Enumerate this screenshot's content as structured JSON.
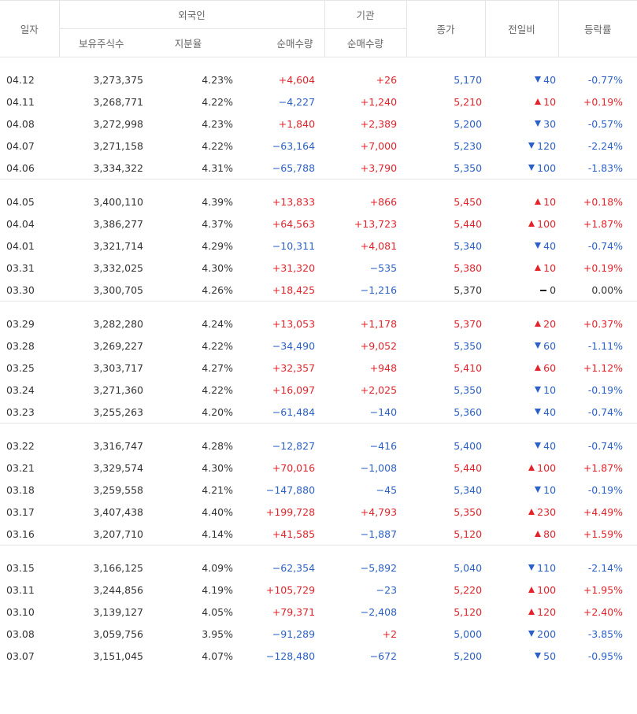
{
  "headers": {
    "date": "일자",
    "foreign_group": "외국인",
    "institution_group": "기관",
    "holdings": "보유주식수",
    "ratio": "지분율",
    "foreign_net": "순매수량",
    "inst_net": "순매수량",
    "close": "종가",
    "change": "전일비",
    "rate": "등락률"
  },
  "colors": {
    "up": "#e4222a",
    "down": "#2b60c9",
    "flat": "#333333"
  },
  "groups": [
    [
      {
        "date": "04.12",
        "holdings": "3,273,375",
        "ratio": "4.23%",
        "fnet": "+4,604",
        "inet": "+26",
        "close": "5,170",
        "dir": "dn",
        "chg": "40",
        "rate": "-0.77%"
      },
      {
        "date": "04.11",
        "holdings": "3,268,771",
        "ratio": "4.22%",
        "fnet": "−4,227",
        "inet": "+1,240",
        "close": "5,210",
        "dir": "up",
        "chg": "10",
        "rate": "+0.19%"
      },
      {
        "date": "04.08",
        "holdings": "3,272,998",
        "ratio": "4.23%",
        "fnet": "+1,840",
        "inet": "+2,389",
        "close": "5,200",
        "dir": "dn",
        "chg": "30",
        "rate": "-0.57%"
      },
      {
        "date": "04.07",
        "holdings": "3,271,158",
        "ratio": "4.22%",
        "fnet": "−63,164",
        "inet": "+7,000",
        "close": "5,230",
        "dir": "dn",
        "chg": "120",
        "rate": "-2.24%"
      },
      {
        "date": "04.06",
        "holdings": "3,334,322",
        "ratio": "4.31%",
        "fnet": "−65,788",
        "inet": "+3,790",
        "close": "5,350",
        "dir": "dn",
        "chg": "100",
        "rate": "-1.83%"
      }
    ],
    [
      {
        "date": "04.05",
        "holdings": "3,400,110",
        "ratio": "4.39%",
        "fnet": "+13,833",
        "inet": "+866",
        "close": "5,450",
        "dir": "up",
        "chg": "10",
        "rate": "+0.18%"
      },
      {
        "date": "04.04",
        "holdings": "3,386,277",
        "ratio": "4.37%",
        "fnet": "+64,563",
        "inet": "+13,723",
        "close": "5,440",
        "dir": "up",
        "chg": "100",
        "rate": "+1.87%"
      },
      {
        "date": "04.01",
        "holdings": "3,321,714",
        "ratio": "4.29%",
        "fnet": "−10,311",
        "inet": "+4,081",
        "close": "5,340",
        "dir": "dn",
        "chg": "40",
        "rate": "-0.74%"
      },
      {
        "date": "03.31",
        "holdings": "3,332,025",
        "ratio": "4.30%",
        "fnet": "+31,320",
        "inet": "−535",
        "close": "5,380",
        "dir": "up",
        "chg": "10",
        "rate": "+0.19%"
      },
      {
        "date": "03.30",
        "holdings": "3,300,705",
        "ratio": "4.26%",
        "fnet": "+18,425",
        "inet": "−1,216",
        "close": "5,370",
        "dir": "flat",
        "chg": "0",
        "rate": "0.00%"
      }
    ],
    [
      {
        "date": "03.29",
        "holdings": "3,282,280",
        "ratio": "4.24%",
        "fnet": "+13,053",
        "inet": "+1,178",
        "close": "5,370",
        "dir": "up",
        "chg": "20",
        "rate": "+0.37%"
      },
      {
        "date": "03.28",
        "holdings": "3,269,227",
        "ratio": "4.22%",
        "fnet": "−34,490",
        "inet": "+9,052",
        "close": "5,350",
        "dir": "dn",
        "chg": "60",
        "rate": "-1.11%"
      },
      {
        "date": "03.25",
        "holdings": "3,303,717",
        "ratio": "4.27%",
        "fnet": "+32,357",
        "inet": "+948",
        "close": "5,410",
        "dir": "up",
        "chg": "60",
        "rate": "+1.12%"
      },
      {
        "date": "03.24",
        "holdings": "3,271,360",
        "ratio": "4.22%",
        "fnet": "+16,097",
        "inet": "+2,025",
        "close": "5,350",
        "dir": "dn",
        "chg": "10",
        "rate": "-0.19%"
      },
      {
        "date": "03.23",
        "holdings": "3,255,263",
        "ratio": "4.20%",
        "fnet": "−61,484",
        "inet": "−140",
        "close": "5,360",
        "dir": "dn",
        "chg": "40",
        "rate": "-0.74%"
      }
    ],
    [
      {
        "date": "03.22",
        "holdings": "3,316,747",
        "ratio": "4.28%",
        "fnet": "−12,827",
        "inet": "−416",
        "close": "5,400",
        "dir": "dn",
        "chg": "40",
        "rate": "-0.74%"
      },
      {
        "date": "03.21",
        "holdings": "3,329,574",
        "ratio": "4.30%",
        "fnet": "+70,016",
        "inet": "−1,008",
        "close": "5,440",
        "dir": "up",
        "chg": "100",
        "rate": "+1.87%"
      },
      {
        "date": "03.18",
        "holdings": "3,259,558",
        "ratio": "4.21%",
        "fnet": "−147,880",
        "inet": "−45",
        "close": "5,340",
        "dir": "dn",
        "chg": "10",
        "rate": "-0.19%"
      },
      {
        "date": "03.17",
        "holdings": "3,407,438",
        "ratio": "4.40%",
        "fnet": "+199,728",
        "inet": "+4,793",
        "close": "5,350",
        "dir": "up",
        "chg": "230",
        "rate": "+4.49%"
      },
      {
        "date": "03.16",
        "holdings": "3,207,710",
        "ratio": "4.14%",
        "fnet": "+41,585",
        "inet": "−1,887",
        "close": "5,120",
        "dir": "up",
        "chg": "80",
        "rate": "+1.59%"
      }
    ],
    [
      {
        "date": "03.15",
        "holdings": "3,166,125",
        "ratio": "4.09%",
        "fnet": "−62,354",
        "inet": "−5,892",
        "close": "5,040",
        "dir": "dn",
        "chg": "110",
        "rate": "-2.14%"
      },
      {
        "date": "03.11",
        "holdings": "3,244,856",
        "ratio": "4.19%",
        "fnet": "+105,729",
        "inet": "−23",
        "close": "5,220",
        "dir": "up",
        "chg": "100",
        "rate": "+1.95%"
      },
      {
        "date": "03.10",
        "holdings": "3,139,127",
        "ratio": "4.05%",
        "fnet": "+79,371",
        "inet": "−2,408",
        "close": "5,120",
        "dir": "up",
        "chg": "120",
        "rate": "+2.40%"
      },
      {
        "date": "03.08",
        "holdings": "3,059,756",
        "ratio": "3.95%",
        "fnet": "−91,289",
        "inet": "+2",
        "close": "5,000",
        "dir": "dn",
        "chg": "200",
        "rate": "-3.85%"
      },
      {
        "date": "03.07",
        "holdings": "3,151,045",
        "ratio": "4.07%",
        "fnet": "−128,480",
        "inet": "−672",
        "close": "5,200",
        "dir": "dn",
        "chg": "50",
        "rate": "-0.95%"
      }
    ]
  ]
}
